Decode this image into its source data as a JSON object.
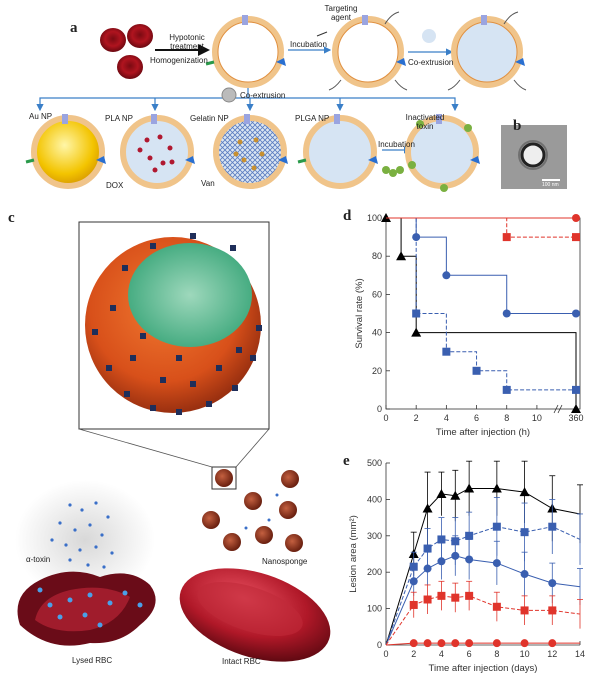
{
  "panel_a": {
    "letter": "a",
    "step1_label_top": "Hypotonic treatment",
    "step1_label_bottom": "Homogenization",
    "targeting_agent": "Targeting agent",
    "incubation1": "Incubation",
    "coextrusion1": "Co-extrusion",
    "coextrusion2": "Co-extrusion",
    "np_types": [
      "Au NP",
      "PLA NP",
      "Gelatin NP",
      "PLGA NP"
    ],
    "dox": "DOX",
    "van": "Van",
    "incubation2": "Incubation",
    "inactivated_toxin": "Inactivated toxin"
  },
  "panel_b": {
    "letter": "b",
    "scale": "100 nm"
  },
  "panel_c": {
    "letter": "c",
    "alpha_toxin": "α-toxin",
    "nanosponge": "Nanosponge",
    "lysed_rbc": "Lysed RBC",
    "intact_rbc": "Intact RBC"
  },
  "colors": {
    "black": "#000000",
    "blue": "#3a5fb0",
    "red": "#e0342b"
  },
  "chart_data": [
    {
      "panel": "d",
      "type": "line",
      "xlabel": "Time after injection (h)",
      "ylabel": "Survival rate (%)",
      "x_ticks": [
        "0",
        "2",
        "4",
        "6",
        "8",
        "10",
        "360"
      ],
      "y_ticks": [
        "0",
        "20",
        "40",
        "60",
        "80",
        "100"
      ],
      "ylim": [
        0,
        100
      ],
      "step": true,
      "series": [
        {
          "color": "black",
          "marker": "triangle",
          "dash": false,
          "x": [
            0,
            1,
            2,
            360
          ],
          "y": [
            100,
            80,
            40,
            0
          ]
        },
        {
          "color": "blue",
          "marker": "circle",
          "dash": false,
          "x": [
            0,
            2,
            4,
            8,
            360
          ],
          "y": [
            100,
            90,
            70,
            50,
            50
          ]
        },
        {
          "color": "blue",
          "marker": "square",
          "dash": true,
          "x": [
            0,
            2,
            4,
            6,
            8,
            360
          ],
          "y": [
            100,
            50,
            30,
            20,
            10,
            10
          ]
        },
        {
          "color": "red",
          "marker": "circle",
          "dash": false,
          "x": [
            0,
            360
          ],
          "y": [
            100,
            100
          ]
        },
        {
          "color": "red",
          "marker": "square",
          "dash": true,
          "x": [
            0,
            8,
            360
          ],
          "y": [
            100,
            90,
            90
          ]
        }
      ]
    },
    {
      "panel": "e",
      "type": "line",
      "xlabel": "Time after injection (days)",
      "ylabel": "Lesion area (mm²)",
      "x_ticks": [
        "0",
        "2",
        "4",
        "6",
        "8",
        "10",
        "12",
        "14"
      ],
      "y_ticks": [
        "0",
        "100",
        "200",
        "300",
        "400",
        "500"
      ],
      "xlim": [
        0,
        14
      ],
      "ylim": [
        0,
        500
      ],
      "series": [
        {
          "color": "black",
          "marker": "triangle",
          "dash": false,
          "x": [
            0,
            2,
            3,
            4,
            5,
            6,
            8,
            10,
            12,
            14
          ],
          "y": [
            0,
            250,
            375,
            415,
            410,
            430,
            430,
            420,
            375,
            360
          ],
          "err": [
            0,
            60,
            100,
            60,
            70,
            75,
            75,
            85,
            90,
            80
          ]
        },
        {
          "color": "blue",
          "marker": "square",
          "dash": true,
          "x": [
            0,
            2,
            3,
            4,
            5,
            6,
            8,
            10,
            12,
            14
          ],
          "y": [
            0,
            215,
            265,
            290,
            285,
            300,
            325,
            310,
            325,
            290
          ],
          "err": [
            0,
            40,
            55,
            60,
            65,
            65,
            80,
            80,
            75,
            70
          ]
        },
        {
          "color": "blue",
          "marker": "circle",
          "dash": false,
          "x": [
            0,
            2,
            3,
            4,
            5,
            6,
            8,
            10,
            12,
            14
          ],
          "y": [
            0,
            175,
            210,
            230,
            245,
            235,
            225,
            195,
            170,
            160
          ],
          "err": [
            0,
            40,
            45,
            50,
            55,
            55,
            60,
            60,
            55,
            50
          ]
        },
        {
          "color": "red",
          "marker": "square",
          "dash": true,
          "x": [
            0,
            2,
            3,
            4,
            5,
            6,
            8,
            10,
            12,
            14
          ],
          "y": [
            0,
            110,
            125,
            135,
            130,
            135,
            105,
            95,
            95,
            85
          ],
          "err": [
            0,
            35,
            40,
            40,
            40,
            40,
            40,
            40,
            40,
            40
          ]
        },
        {
          "color": "red",
          "marker": "circle",
          "dash": false,
          "x": [
            0,
            2,
            3,
            4,
            5,
            6,
            8,
            10,
            12,
            14
          ],
          "y": [
            0,
            5,
            5,
            5,
            5,
            5,
            5,
            5,
            5,
            5
          ],
          "err": [
            0,
            0,
            0,
            0,
            0,
            0,
            0,
            0,
            0,
            0
          ]
        }
      ]
    }
  ]
}
